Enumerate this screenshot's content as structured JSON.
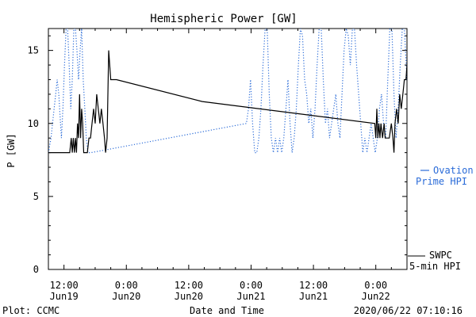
{
  "chart_data": {
    "type": "line",
    "title": "Hemispheric Power [GW]",
    "xlabel": "Date and Time",
    "ylabel": "P [GW]",
    "ylim": [
      0,
      16.5
    ],
    "xlim": [
      -39,
      30
    ],
    "yticks": [
      0,
      5,
      10,
      15
    ],
    "xticks": [
      {
        "x": -36,
        "line1": "12:00",
        "line2": "Jun19"
      },
      {
        "x": -24,
        "line1": "0:00",
        "line2": "Jun20"
      },
      {
        "x": -12,
        "line1": "12:00",
        "line2": "Jun20"
      },
      {
        "x": 0,
        "line1": "0:00",
        "line2": "Jun21"
      },
      {
        "x": 12,
        "line1": "12:00",
        "line2": "Jun21"
      },
      {
        "x": 24,
        "line1": "0:00",
        "line2": "Jun22"
      }
    ],
    "x_units_note": "",
    "series": [
      {
        "name": "SWPC 5-min HPI",
        "legend_line1": "SWPC",
        "legend_line2": "5-min HPI",
        "color": "#000000",
        "style": "solid",
        "x": [
          -39.0,
          -34.9,
          -34.6,
          -34.4,
          -34.2,
          -34.0,
          -33.8,
          -33.6,
          -33.4,
          -33.2,
          -33.0,
          -32.8,
          -32.6,
          -32.4,
          -32.2,
          -32.0,
          -31.5,
          -31.2,
          -30.9,
          -30.6,
          -30.3,
          -30.0,
          -29.7,
          -29.4,
          -29.1,
          -28.8,
          -28.5,
          -28.2,
          -28.0,
          -27.7,
          -27.4,
          -27.0,
          -25.9,
          -9.4,
          23.8,
          24.0,
          24.2,
          24.4,
          24.6,
          24.8,
          25.0,
          25.3,
          25.6,
          25.8,
          26.0,
          26.3,
          26.6,
          27.0,
          27.3,
          27.5,
          27.7,
          28.0,
          28.3,
          28.6,
          28.9,
          29.2,
          29.5,
          29.8,
          30.0
        ],
        "y": [
          8.0,
          8.0,
          9.0,
          8.0,
          9.0,
          8.0,
          9.0,
          8.0,
          10.0,
          9.0,
          12.0,
          9.0,
          11.0,
          10.0,
          8.0,
          8.0,
          8.0,
          9.0,
          9.0,
          10.0,
          11.0,
          10.0,
          12.0,
          11.0,
          10.0,
          11.0,
          10.0,
          9.0,
          8.0,
          9.0,
          15.0,
          13.0,
          13.0,
          11.5,
          10.0,
          9.0,
          11.0,
          9.0,
          10.0,
          9.0,
          10.0,
          9.0,
          10.0,
          9.0,
          9.0,
          9.0,
          9.0,
          10.0,
          9.0,
          8.0,
          10.0,
          11.0,
          10.0,
          12.0,
          11.0,
          12.0,
          13.0,
          13.0,
          14.0
        ]
      },
      {
        "name": "Ovation Prime HPI",
        "legend_line1": "Ovation",
        "legend_line2": "Prime HPI",
        "color": "#2a6bd8",
        "style": "dotted",
        "x": [
          -39.0,
          -38.5,
          -38.2,
          -37.9,
          -37.6,
          -37.3,
          -37.0,
          -36.5,
          -36.2,
          -35.9,
          -35.6,
          -35.3,
          -35.0,
          -34.7,
          -34.4,
          -34.1,
          -33.8,
          -33.5,
          -33.2,
          -32.9,
          -32.6,
          -32.3,
          -32.0,
          -31.7,
          -31.4,
          -31.1,
          -30.8,
          -0.9,
          -0.5,
          -0.1,
          0.3,
          0.7,
          1.1,
          1.5,
          1.9,
          2.3,
          2.7,
          3.1,
          3.5,
          3.9,
          4.3,
          4.7,
          5.1,
          5.5,
          5.9,
          6.3,
          6.7,
          7.1,
          7.5,
          7.9,
          8.3,
          8.7,
          9.1,
          9.5,
          9.9,
          10.3,
          10.7,
          11.1,
          11.5,
          11.9,
          12.3,
          12.7,
          13.1,
          13.5,
          13.9,
          14.3,
          14.7,
          15.1,
          15.5,
          15.9,
          16.3,
          16.7,
          17.1,
          17.5,
          17.9,
          18.3,
          18.7,
          19.1,
          19.5,
          19.9,
          20.3,
          20.7,
          21.1,
          21.5,
          21.9,
          22.3,
          22.7,
          23.1,
          23.5,
          23.9,
          24.3,
          24.7,
          25.1,
          25.5,
          25.9,
          26.3,
          26.7,
          27.1,
          27.5,
          27.9,
          28.3,
          28.7,
          29.1,
          29.5,
          30.0
        ],
        "y": [
          8.0,
          9.0,
          10.0,
          11.0,
          12.0,
          13.0,
          12.0,
          9.0,
          11.0,
          14.0,
          16.5,
          16.5,
          14.0,
          11.0,
          13.0,
          16.5,
          16.5,
          15.0,
          13.0,
          15.0,
          16.5,
          13.0,
          11.0,
          9.0,
          8.0,
          8.0,
          8.0,
          10.0,
          11.0,
          13.0,
          10.0,
          8.0,
          8.0,
          9.0,
          11.0,
          14.0,
          16.5,
          16.5,
          12.0,
          9.0,
          8.0,
          9.0,
          8.0,
          9.0,
          8.0,
          9.0,
          11.0,
          13.0,
          10.0,
          8.0,
          9.0,
          11.0,
          14.0,
          16.5,
          16.0,
          13.0,
          12.0,
          10.0,
          11.0,
          9.0,
          11.0,
          14.0,
          16.5,
          16.5,
          13.0,
          10.0,
          11.0,
          9.0,
          10.0,
          11.0,
          12.0,
          10.0,
          9.0,
          12.0,
          15.0,
          16.5,
          16.0,
          14.0,
          16.5,
          16.5,
          14.0,
          12.0,
          10.0,
          8.0,
          9.0,
          8.0,
          9.0,
          10.0,
          9.0,
          8.0,
          9.0,
          11.0,
          12.0,
          10.0,
          9.0,
          13.0,
          16.5,
          16.5,
          12.0,
          9.0,
          11.0,
          14.0,
          16.5,
          16.5,
          13.0
        ]
      }
    ],
    "footer_left": "Plot: CCMC",
    "footer_right": "2020/06/22 07:10:16"
  }
}
